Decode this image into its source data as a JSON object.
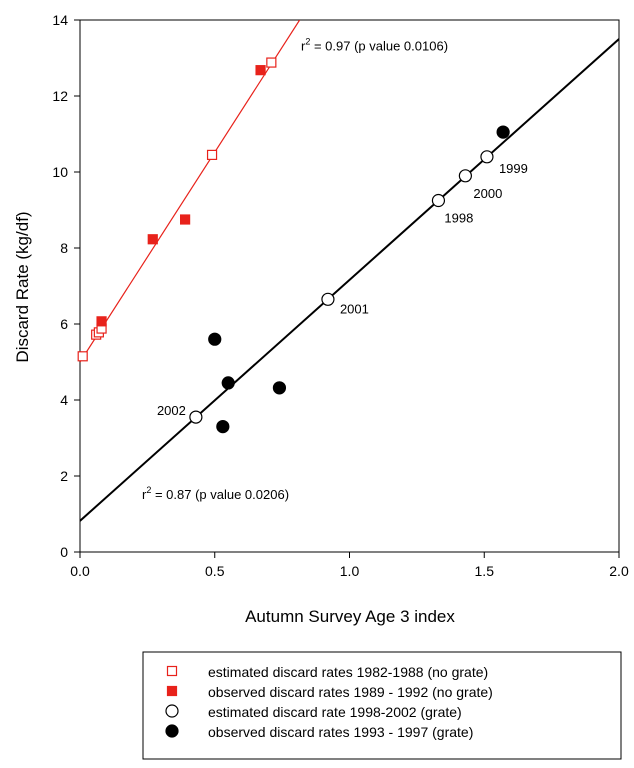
{
  "chart_data": {
    "type": "scatter",
    "xlabel": "Autumn Survey Age 3 index",
    "ylabel": "Discard Rate (kg/df)",
    "xlim": [
      0,
      2.0
    ],
    "ylim": [
      0,
      14
    ],
    "xticks": [
      "0.0",
      "0.5",
      "1.0",
      "1.5",
      "2.0"
    ],
    "yticks": [
      "0",
      "2",
      "4",
      "6",
      "8",
      "10",
      "12",
      "14"
    ],
    "grid": false,
    "legend_position": "bottom",
    "series": [
      {
        "name": "estimated discard rates 1982-1988 (no grate)",
        "marker": "square-open",
        "color": "#e8221b",
        "points": [
          [
            0.01,
            5.15
          ],
          [
            0.06,
            5.72
          ],
          [
            0.07,
            5.78
          ],
          [
            0.08,
            5.88
          ],
          [
            0.49,
            10.45
          ],
          [
            0.71,
            12.88
          ]
        ]
      },
      {
        "name": "observed discard rates 1989 - 1992 (no grate)",
        "marker": "square-filled",
        "color": "#e8221b",
        "points": [
          [
            0.08,
            6.07
          ],
          [
            0.27,
            8.23
          ],
          [
            0.39,
            8.75
          ],
          [
            0.67,
            12.68
          ]
        ]
      },
      {
        "name": "estimated discard rate 1998-2002 (grate)",
        "marker": "circle-open",
        "color": "#000000",
        "points": [
          [
            0.43,
            3.55
          ],
          [
            0.92,
            6.65
          ],
          [
            1.33,
            9.25
          ],
          [
            1.43,
            9.9
          ],
          [
            1.51,
            10.4
          ]
        ]
      },
      {
        "name": "observed discard  rates  1993 - 1997 (grate)",
        "marker": "circle-filled",
        "color": "#000000",
        "points": [
          [
            0.5,
            5.6
          ],
          [
            0.53,
            3.3
          ],
          [
            0.55,
            4.45
          ],
          [
            0.74,
            4.32
          ],
          [
            1.57,
            11.05
          ]
        ]
      }
    ],
    "fit_lines": [
      {
        "color": "#e8221b",
        "x": [
          0.0,
          0.815
        ],
        "y": [
          5.0,
          14.0
        ]
      },
      {
        "color": "#000000",
        "x": [
          0.0,
          2.0
        ],
        "y": [
          0.82,
          13.5
        ]
      }
    ],
    "annotations": [
      {
        "text": "1999",
        "x": 1.51,
        "y": 10.4
      },
      {
        "text": "2000",
        "x": 1.43,
        "y": 9.9
      },
      {
        "text": "1998",
        "x": 1.33,
        "y": 9.25
      },
      {
        "text": "2001",
        "x": 0.92,
        "y": 6.65
      },
      {
        "text": "2002",
        "x": 0.43,
        "y": 3.55
      }
    ],
    "r2_labels": [
      {
        "prefix": "r",
        "sup": "2",
        "rest": " = 0.97 (p value 0.0106)",
        "x": 0.82,
        "y": 13.2
      },
      {
        "prefix": "r",
        "sup": "2",
        "rest": " = 0.87 (p value 0.0206)",
        "x": 0.23,
        "y": 1.4
      }
    ]
  }
}
